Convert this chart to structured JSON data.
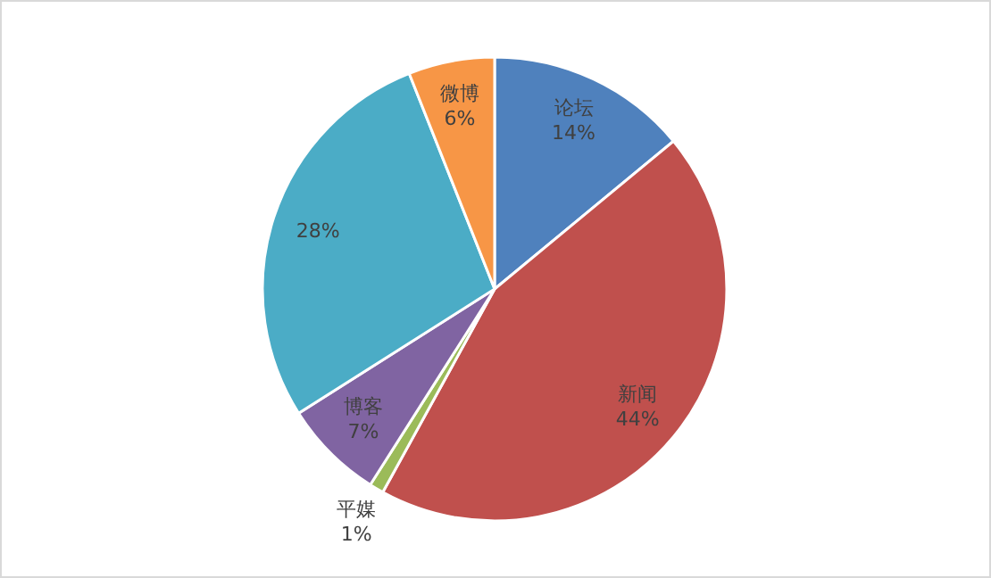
{
  "chart_data": {
    "type": "pie",
    "categories": [
      "论坛",
      "新闻",
      "平媒",
      "博客",
      null,
      "微博"
    ],
    "values": [
      14,
      44,
      1,
      7,
      28,
      6
    ],
    "value_labels": [
      "14%",
      "44%",
      "1%",
      "7%",
      "28%",
      "6%"
    ],
    "colors": [
      "#4f81bd",
      "#c0504d",
      "#9bbb59",
      "#8064a2",
      "#4bacc6",
      "#f79646"
    ]
  }
}
